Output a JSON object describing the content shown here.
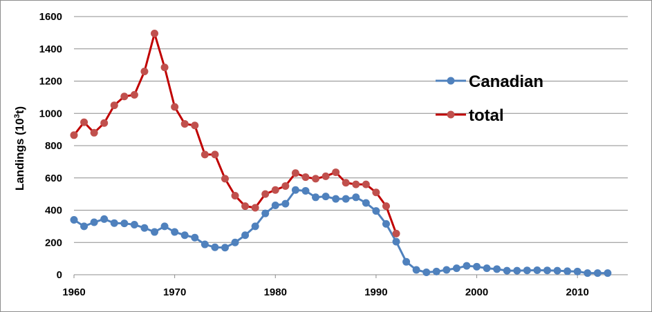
{
  "chart_data": {
    "type": "line",
    "title": "",
    "xlabel": "",
    "ylabel": "Landings (10",
    "ylabel_sup": "3",
    "ylabel_end": "t)",
    "xlim": [
      1960,
      2015
    ],
    "ylim": [
      0,
      1600
    ],
    "xticks": [
      1960,
      1970,
      1980,
      1990,
      2000,
      2010
    ],
    "yticks": [
      0,
      200,
      400,
      600,
      800,
      1000,
      1200,
      1400,
      1600
    ],
    "grid": "horizontal",
    "legend_position": "right",
    "series": [
      {
        "name": "Canadian",
        "color": "#4f81bd",
        "x": [
          1960,
          1961,
          1962,
          1963,
          1964,
          1965,
          1966,
          1967,
          1968,
          1969,
          1970,
          1971,
          1972,
          1973,
          1974,
          1975,
          1976,
          1977,
          1978,
          1979,
          1980,
          1981,
          1982,
          1983,
          1984,
          1985,
          1986,
          1987,
          1988,
          1989,
          1990,
          1991,
          1992,
          1993,
          1994,
          1995,
          1996,
          1997,
          1998,
          1999,
          2000,
          2001,
          2002,
          2003,
          2004,
          2005,
          2006,
          2007,
          2008,
          2009,
          2010,
          2011,
          2012,
          2013
        ],
        "values": [
          340,
          300,
          325,
          345,
          320,
          318,
          310,
          290,
          265,
          300,
          265,
          245,
          230,
          188,
          170,
          168,
          200,
          245,
          300,
          380,
          430,
          440,
          525,
          520,
          480,
          485,
          470,
          470,
          480,
          445,
          395,
          315,
          205,
          80,
          30,
          15,
          20,
          30,
          40,
          55,
          50,
          40,
          35,
          25,
          25,
          27,
          28,
          27,
          25,
          22,
          20,
          10,
          10,
          10
        ]
      },
      {
        "name": "total",
        "color": "#c0504d",
        "x": [
          1960,
          1961,
          1962,
          1963,
          1964,
          1965,
          1966,
          1967,
          1968,
          1969,
          1970,
          1971,
          1972,
          1973,
          1974,
          1975,
          1976,
          1977,
          1978,
          1979,
          1980,
          1981,
          1982,
          1983,
          1984,
          1985,
          1986,
          1987,
          1988,
          1989,
          1990,
          1991,
          1992
        ],
        "values": [
          865,
          945,
          880,
          940,
          1050,
          1105,
          1115,
          1260,
          1495,
          1285,
          1040,
          935,
          925,
          745,
          745,
          595,
          490,
          425,
          415,
          500,
          525,
          550,
          630,
          605,
          595,
          610,
          635,
          570,
          560,
          560,
          510,
          425,
          255
        ]
      }
    ]
  }
}
